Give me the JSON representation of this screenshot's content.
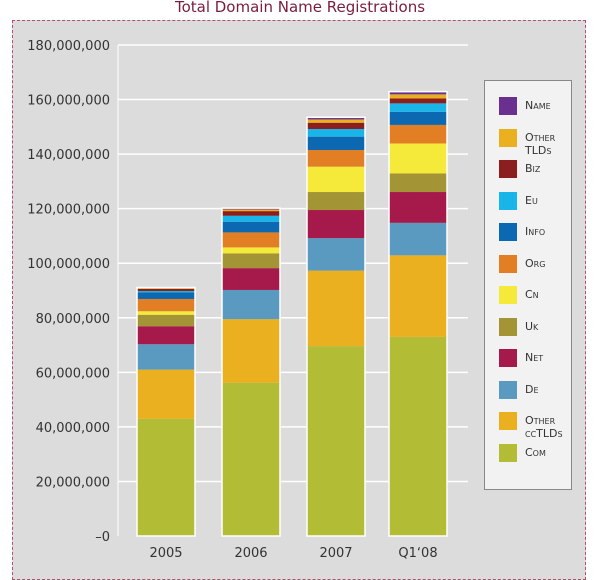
{
  "chart_data": {
    "type": "bar",
    "stacked": true,
    "title": "Total Domain Name Registrations",
    "xlabel": "",
    "ylabel": "",
    "ylim": [
      0,
      180000000
    ],
    "yticks": [
      0,
      20000000,
      40000000,
      60000000,
      80000000,
      100000000,
      120000000,
      140000000,
      160000000,
      180000000
    ],
    "ytick_labels": [
      "–0",
      "20,000,000",
      "40,000,000",
      "60,000,000",
      "80,000,000",
      "100,000,000",
      "120,000,000",
      "140,000,000",
      "160,000,000",
      "180,000,000"
    ],
    "grid": true,
    "legend_position": "right",
    "categories": [
      "2005",
      "2006",
      "2007",
      "Q1‘08"
    ],
    "series": [
      {
        "name": "Com",
        "color": "#b3bc35",
        "values": [
          43000000,
          56200000,
          69600000,
          73000000
        ]
      },
      {
        "name": "Other ccTLDs",
        "color": "#ebb020",
        "values": [
          18000000,
          23300000,
          27700000,
          29900000
        ]
      },
      {
        "name": "De",
        "color": "#5a9ac0",
        "values": [
          9300000,
          10700000,
          11900000,
          11900000
        ]
      },
      {
        "name": "Net",
        "color": "#a51a4a",
        "values": [
          6600000,
          8000000,
          10300000,
          11300000
        ]
      },
      {
        "name": "Uk",
        "color": "#a39535",
        "values": [
          4200000,
          5400000,
          6600000,
          6800000
        ]
      },
      {
        "name": "Cn",
        "color": "#f5e93a",
        "values": [
          1300000,
          2200000,
          9300000,
          11000000
        ]
      },
      {
        "name": "Org",
        "color": "#e27f25",
        "values": [
          4500000,
          5500000,
          6100000,
          6800000
        ]
      },
      {
        "name": "Info",
        "color": "#0c68b0",
        "values": [
          2400000,
          3900000,
          4900000,
          4800000
        ]
      },
      {
        "name": "Eu",
        "color": "#1ab5e8",
        "values": [
          500000,
          2200000,
          2800000,
          3100000
        ]
      },
      {
        "name": "Biz",
        "color": "#8b1e1e",
        "values": [
          800000,
          1700000,
          2300000,
          1800000
        ]
      },
      {
        "name": "Other TLDs",
        "color": "#ebb020",
        "values": [
          300000,
          600000,
          1200000,
          1500000
        ]
      },
      {
        "name": "Name",
        "color": "#6a3090",
        "values": [
          200000,
          500000,
          800000,
          1000000
        ]
      }
    ]
  }
}
